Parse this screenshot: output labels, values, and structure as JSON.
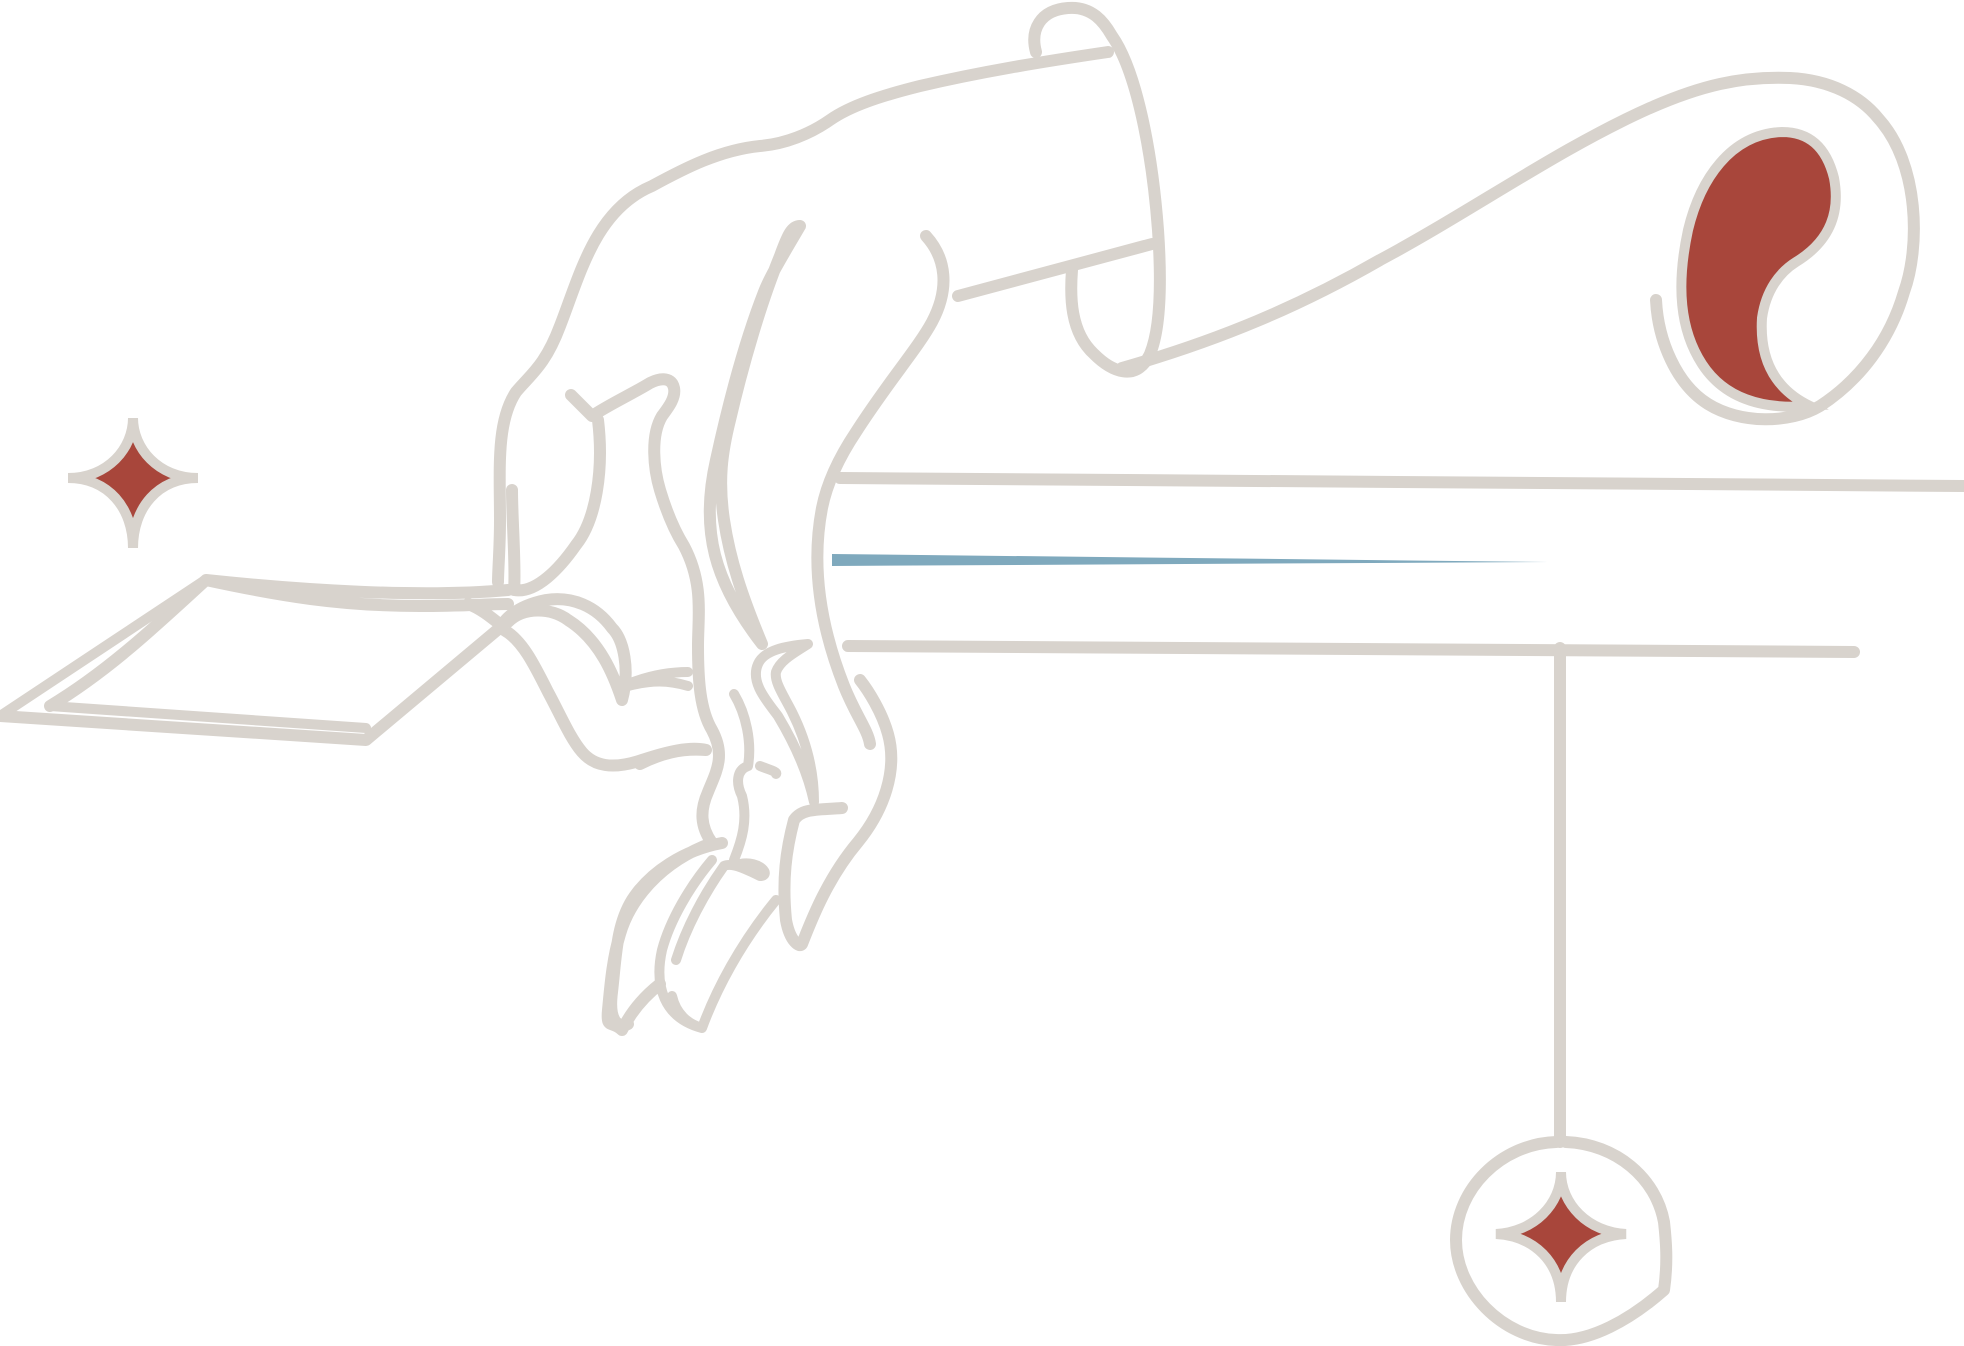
{
  "illustration": {
    "subject": "hand-icon",
    "colors": {
      "background": "#ffffff",
      "line": "#d8d3cd",
      "accent_red": "#a8463b",
      "accent_blue": "#7fa9bd"
    }
  }
}
